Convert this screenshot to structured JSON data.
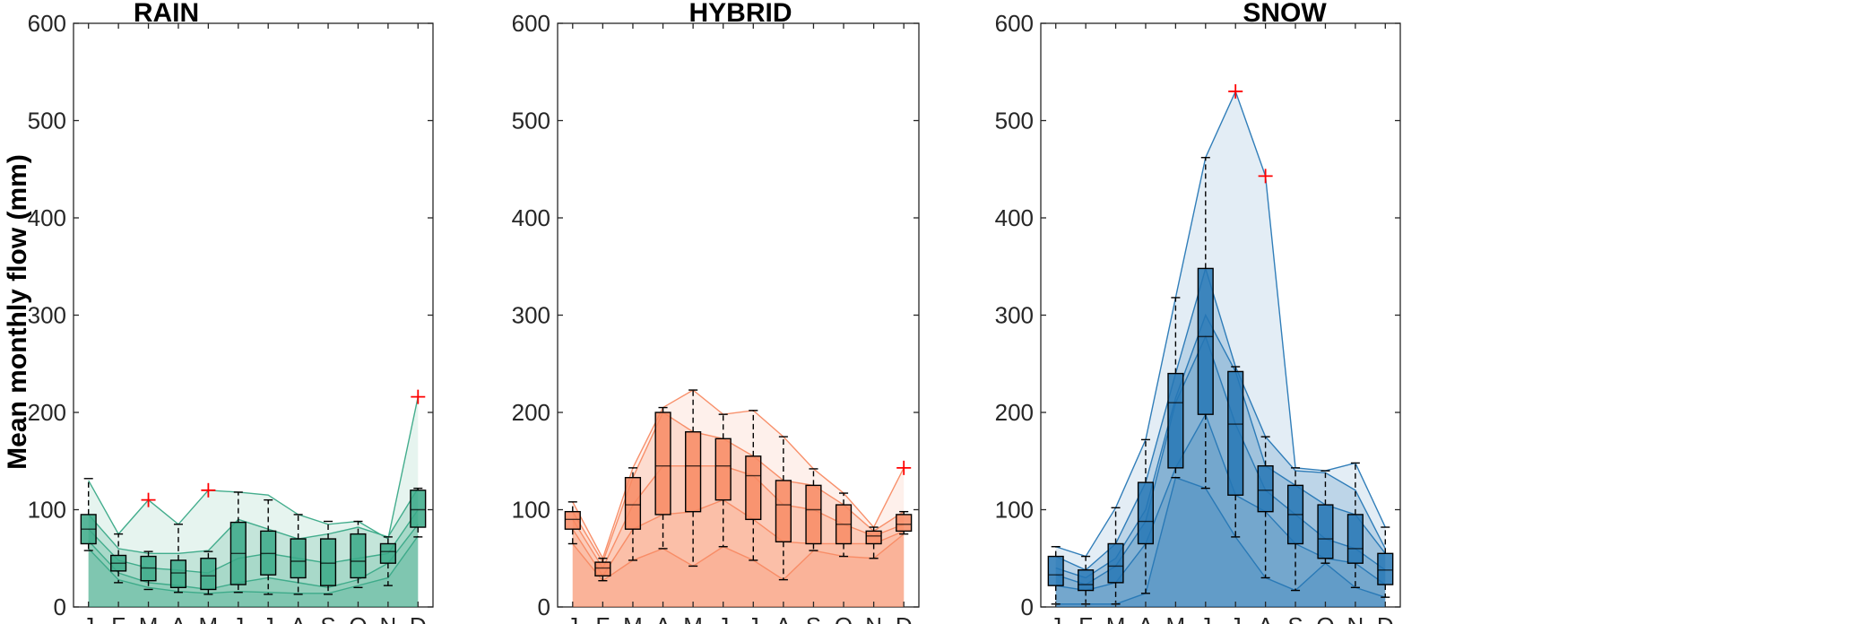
{
  "ylabel": "Mean monthly flow (mm)",
  "chart_data": [
    {
      "type": "box",
      "title": "RAIN",
      "color": "#3aa987",
      "categories": [
        "J",
        "F",
        "M",
        "A",
        "M",
        "J",
        "J",
        "A",
        "S",
        "O",
        "N",
        "D"
      ],
      "ylim": [
        0,
        600
      ],
      "yticks": [
        0,
        100,
        200,
        300,
        400,
        500,
        600
      ],
      "boxes": [
        {
          "whisker_low": 58,
          "q1": 65,
          "median": 80,
          "q3": 95,
          "whisker_high": 132
        },
        {
          "whisker_low": 25,
          "q1": 37,
          "median": 45,
          "q3": 53,
          "whisker_high": 75
        },
        {
          "whisker_low": 18,
          "q1": 27,
          "median": 40,
          "q3": 52,
          "whisker_high": 57
        },
        {
          "whisker_low": 15,
          "q1": 20,
          "median": 35,
          "q3": 48,
          "whisker_high": 85
        },
        {
          "whisker_low": 13,
          "q1": 18,
          "median": 32,
          "q3": 50,
          "whisker_high": 57
        },
        {
          "whisker_low": 15,
          "q1": 23,
          "median": 55,
          "q3": 87,
          "whisker_high": 118
        },
        {
          "whisker_low": 13,
          "q1": 33,
          "median": 55,
          "q3": 78,
          "whisker_high": 110
        },
        {
          "whisker_low": 13,
          "q1": 30,
          "median": 47,
          "q3": 70,
          "whisker_high": 95
        },
        {
          "whisker_low": 13,
          "q1": 22,
          "median": 45,
          "q3": 70,
          "whisker_high": 88
        },
        {
          "whisker_low": 20,
          "q1": 30,
          "median": 47,
          "q3": 75,
          "whisker_high": 88
        },
        {
          "whisker_low": 22,
          "q1": 45,
          "median": 57,
          "q3": 65,
          "whisker_high": 72
        },
        {
          "whisker_low": 72,
          "q1": 82,
          "median": 100,
          "q3": 120,
          "whisker_high": 122
        }
      ],
      "outliers": [
        {
          "month": 3,
          "value": 110
        },
        {
          "month": 5,
          "value": 120
        },
        {
          "month": 12,
          "value": 216
        }
      ],
      "series": [
        {
          "values": [
            130,
            75,
            110,
            85,
            120,
            118,
            115,
            95,
            85,
            88,
            70,
            216
          ]
        },
        {
          "values": [
            95,
            60,
            55,
            55,
            58,
            90,
            80,
            70,
            75,
            82,
            72,
            122
          ]
        },
        {
          "values": [
            80,
            48,
            40,
            38,
            35,
            50,
            55,
            50,
            45,
            50,
            55,
            100
          ]
        },
        {
          "values": [
            68,
            35,
            25,
            22,
            18,
            25,
            30,
            25,
            20,
            28,
            45,
            85
          ]
        },
        {
          "values": [
            60,
            28,
            20,
            16,
            14,
            16,
            15,
            14,
            14,
            22,
            30,
            73
          ]
        }
      ]
    },
    {
      "type": "box",
      "title": "HYBRID",
      "color": "#f88a63",
      "categories": [
        "J",
        "F",
        "M",
        "A",
        "M",
        "J",
        "J",
        "A",
        "S",
        "O",
        "N",
        "D"
      ],
      "ylim": [
        0,
        600
      ],
      "yticks": [
        0,
        100,
        200,
        300,
        400,
        500,
        600
      ],
      "boxes": [
        {
          "whisker_low": 65,
          "q1": 80,
          "median": 90,
          "q3": 98,
          "whisker_high": 108
        },
        {
          "whisker_low": 27,
          "q1": 32,
          "median": 40,
          "q3": 46,
          "whisker_high": 50
        },
        {
          "whisker_low": 48,
          "q1": 80,
          "median": 105,
          "q3": 133,
          "whisker_high": 143
        },
        {
          "whisker_low": 60,
          "q1": 95,
          "median": 145,
          "q3": 200,
          "whisker_high": 205
        },
        {
          "whisker_low": 42,
          "q1": 98,
          "median": 145,
          "q3": 180,
          "whisker_high": 223
        },
        {
          "whisker_low": 62,
          "q1": 110,
          "median": 145,
          "q3": 173,
          "whisker_high": 198
        },
        {
          "whisker_low": 48,
          "q1": 90,
          "median": 135,
          "q3": 155,
          "whisker_high": 202
        },
        {
          "whisker_low": 28,
          "q1": 67,
          "median": 105,
          "q3": 130,
          "whisker_high": 175
        },
        {
          "whisker_low": 58,
          "q1": 65,
          "median": 100,
          "q3": 125,
          "whisker_high": 142
        },
        {
          "whisker_low": 52,
          "q1": 65,
          "median": 85,
          "q3": 105,
          "whisker_high": 117
        },
        {
          "whisker_low": 50,
          "q1": 65,
          "median": 73,
          "q3": 78,
          "whisker_high": 82
        },
        {
          "whisker_low": 75,
          "q1": 78,
          "median": 85,
          "q3": 95,
          "whisker_high": 98
        }
      ],
      "outliers": [
        {
          "month": 12,
          "value": 143
        }
      ],
      "series": [
        {
          "values": [
            108,
            50,
            143,
            205,
            223,
            198,
            202,
            175,
            142,
            117,
            82,
            143
          ]
        },
        {
          "values": [
            98,
            46,
            133,
            200,
            180,
            173,
            155,
            130,
            125,
            105,
            78,
            98
          ]
        },
        {
          "values": [
            90,
            40,
            105,
            145,
            145,
            145,
            135,
            105,
            100,
            85,
            73,
            85
          ]
        },
        {
          "values": [
            80,
            32,
            80,
            95,
            98,
            110,
            90,
            67,
            65,
            65,
            65,
            78
          ]
        },
        {
          "values": [
            65,
            27,
            48,
            60,
            42,
            62,
            48,
            28,
            58,
            52,
            50,
            75
          ]
        }
      ]
    },
    {
      "type": "box",
      "title": "SNOW",
      "color": "#2677b5",
      "categories": [
        "J",
        "F",
        "M",
        "A",
        "M",
        "J",
        "J",
        "A",
        "S",
        "O",
        "N",
        "D"
      ],
      "ylim": [
        0,
        600
      ],
      "yticks": [
        0,
        100,
        200,
        300,
        400,
        500,
        600
      ],
      "boxes": [
        {
          "whisker_low": 3,
          "q1": 22,
          "median": 33,
          "q3": 52,
          "whisker_high": 62
        },
        {
          "whisker_low": 3,
          "q1": 17,
          "median": 23,
          "q3": 38,
          "whisker_high": 52
        },
        {
          "whisker_low": 3,
          "q1": 25,
          "median": 42,
          "q3": 65,
          "whisker_high": 102
        },
        {
          "whisker_low": 14,
          "q1": 65,
          "median": 88,
          "q3": 128,
          "whisker_high": 172
        },
        {
          "whisker_low": 133,
          "q1": 143,
          "median": 210,
          "q3": 240,
          "whisker_high": 318
        },
        {
          "whisker_low": 122,
          "q1": 198,
          "median": 278,
          "q3": 348,
          "whisker_high": 462
        },
        {
          "whisker_low": 72,
          "q1": 115,
          "median": 188,
          "q3": 242,
          "whisker_high": 247
        },
        {
          "whisker_low": 30,
          "q1": 98,
          "median": 120,
          "q3": 145,
          "whisker_high": 175
        },
        {
          "whisker_low": 17,
          "q1": 65,
          "median": 95,
          "q3": 125,
          "whisker_high": 143
        },
        {
          "whisker_low": 45,
          "q1": 50,
          "median": 70,
          "q3": 105,
          "whisker_high": 140
        },
        {
          "whisker_low": 20,
          "q1": 45,
          "median": 60,
          "q3": 95,
          "whisker_high": 148
        },
        {
          "whisker_low": 10,
          "q1": 23,
          "median": 38,
          "q3": 55,
          "whisker_high": 82
        }
      ],
      "outliers": [
        {
          "month": 7,
          "value": 530
        },
        {
          "month": 8,
          "value": 443
        }
      ],
      "series": [
        {
          "values": [
            62,
            52,
            102,
            172,
            318,
            462,
            530,
            443,
            143,
            140,
            148,
            82
          ]
        },
        {
          "values": [
            52,
            38,
            65,
            128,
            240,
            348,
            247,
            175,
            140,
            138,
            120,
            60
          ]
        },
        {
          "values": [
            40,
            30,
            50,
            100,
            215,
            300,
            242,
            145,
            125,
            105,
            95,
            55
          ]
        },
        {
          "values": [
            33,
            23,
            42,
            88,
            210,
            278,
            188,
            120,
            95,
            70,
            60,
            38
          ]
        },
        {
          "values": [
            22,
            17,
            25,
            65,
            143,
            198,
            115,
            98,
            65,
            50,
            45,
            23
          ]
        },
        {
          "values": [
            3,
            3,
            3,
            14,
            133,
            122,
            72,
            30,
            17,
            45,
            20,
            10
          ]
        }
      ]
    }
  ]
}
